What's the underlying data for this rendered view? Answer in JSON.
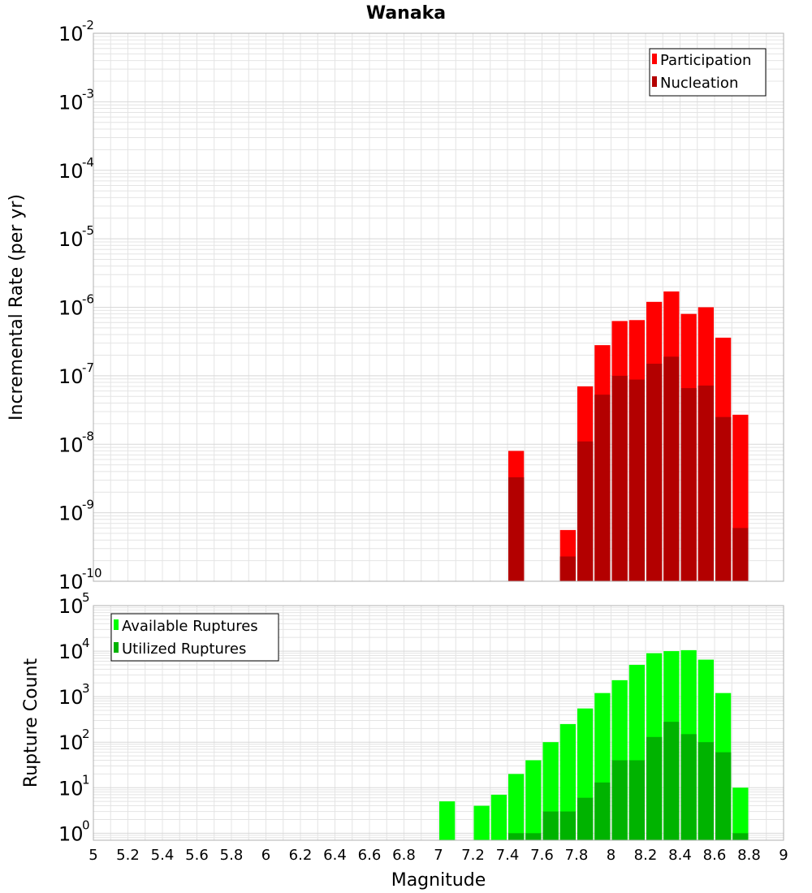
{
  "title": "Wanaka",
  "xlabel": "Magnitude",
  "colors": {
    "participation": "#ff0000",
    "nucleation": "#b30000",
    "available": "#00ff00",
    "utilized": "#00b300",
    "grid": "#e4e4e4",
    "frame": "#b0b0b0"
  },
  "chart_data": [
    {
      "type": "bar",
      "title": "Wanaka",
      "xlabel": "Magnitude",
      "ylabel": "Incremental Rate (per yr)",
      "yscale": "log",
      "xlim": [
        5,
        9
      ],
      "ylim": [
        1e-10,
        0.01
      ],
      "y_tick_exponents": [
        -10,
        -9,
        -8,
        -7,
        -6,
        -5,
        -4,
        -3,
        -2
      ],
      "x_ticks": [
        "5",
        "5.2",
        "5.4",
        "5.6",
        "5.8",
        "6",
        "6.2",
        "6.4",
        "6.6",
        "6.8",
        "7",
        "7.2",
        "7.4",
        "7.6",
        "7.8",
        "8",
        "8.2",
        "8.4",
        "8.6",
        "8.8",
        "9"
      ],
      "bin_width": 0.1,
      "legend_position": "top-right",
      "grid": true,
      "series": [
        {
          "name": "Participation",
          "x": [
            7.45,
            7.75,
            7.85,
            7.95,
            8.05,
            8.15,
            8.25,
            8.35,
            8.45,
            8.55,
            8.65,
            8.75
          ],
          "values": [
            8e-09,
            5.6e-10,
            7e-08,
            2.8e-07,
            6.3e-07,
            6.5e-07,
            1.2e-06,
            1.7e-06,
            8e-07,
            1e-06,
            3.6e-07,
            2.7e-08
          ]
        },
        {
          "name": "Nucleation",
          "x": [
            7.45,
            7.75,
            7.85,
            7.95,
            8.05,
            8.15,
            8.25,
            8.35,
            8.45,
            8.55,
            8.65,
            8.75
          ],
          "values": [
            3.3e-09,
            2.3e-10,
            1.1e-08,
            5.3e-08,
            1e-07,
            8.8e-08,
            1.5e-07,
            1.9e-07,
            6.6e-08,
            7.2e-08,
            2.5e-08,
            6e-10
          ]
        }
      ]
    },
    {
      "type": "bar",
      "xlabel": "Magnitude",
      "ylabel": "Rupture Count",
      "yscale": "log",
      "xlim": [
        5,
        9
      ],
      "ylim": [
        0.7,
        100000
      ],
      "y_tick_exponents": [
        0,
        1,
        2,
        3,
        4,
        5
      ],
      "bin_width": 0.1,
      "legend_position": "top-left",
      "grid": true,
      "series": [
        {
          "name": "Available Ruptures",
          "x": [
            7.05,
            7.25,
            7.35,
            7.45,
            7.55,
            7.65,
            7.75,
            7.85,
            7.95,
            8.05,
            8.15,
            8.25,
            8.35,
            8.45,
            8.55,
            8.65,
            8.75
          ],
          "values": [
            5,
            4,
            7,
            20,
            40,
            100,
            250,
            550,
            1200,
            2300,
            5000,
            9000,
            10000,
            10500,
            6500,
            1200,
            10
          ]
        },
        {
          "name": "Utilized Ruptures",
          "x": [
            7.45,
            7.55,
            7.65,
            7.75,
            7.85,
            7.95,
            8.05,
            8.15,
            8.25,
            8.35,
            8.45,
            8.55,
            8.65,
            8.75
          ],
          "values": [
            1,
            1,
            3,
            3,
            6,
            13,
            40,
            40,
            130,
            280,
            150,
            100,
            60,
            1
          ]
        }
      ]
    }
  ]
}
